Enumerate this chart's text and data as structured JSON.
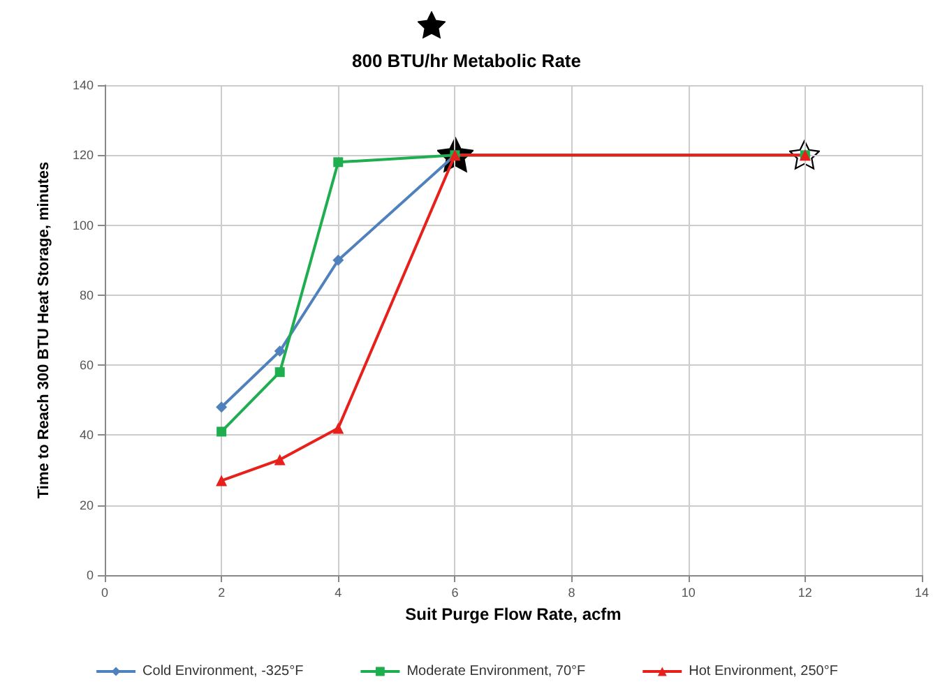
{
  "chart_data": {
    "type": "line",
    "title": "800 BTU/hr Metabolic Rate",
    "xlabel": "Suit Purge Flow Rate, acfm",
    "ylabel": "Time to Reach 300 BTU Heat Storage, minutes",
    "x": [
      2,
      3,
      4,
      6,
      12
    ],
    "series": [
      {
        "name": "Cold Environment, -325°F",
        "color": "#4f81bd",
        "marker": "diamond",
        "values": [
          48,
          64,
          90,
          120,
          120
        ]
      },
      {
        "name": "Moderate Environment, 70°F",
        "color": "#1fae4f",
        "marker": "square",
        "values": [
          41,
          58,
          118,
          120,
          120
        ]
      },
      {
        "name": "Hot Environment, 250°F",
        "color": "#e8201c",
        "marker": "triangle",
        "values": [
          27,
          33,
          42,
          120,
          120
        ]
      }
    ],
    "xlim": [
      0,
      14
    ],
    "xticks": [
      0,
      2,
      4,
      6,
      8,
      10,
      12,
      14
    ],
    "ylim": [
      0,
      140
    ],
    "yticks": [
      0,
      20,
      40,
      60,
      80,
      100,
      120,
      140
    ],
    "grid": true,
    "legend": "bottom",
    "line_style": "solid"
  }
}
